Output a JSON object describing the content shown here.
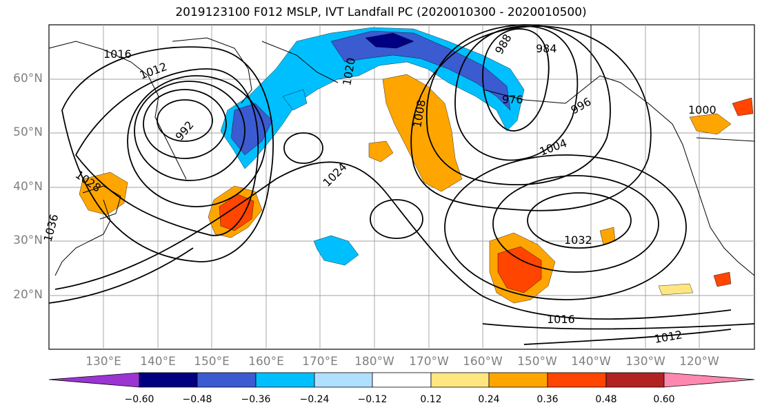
{
  "title": "2019123100 F012 MSLP, IVT Landfall PC (2020010300 - 2020010500)",
  "latitude_labels": [
    "60°N",
    "50°N",
    "40°N",
    "30°N",
    "20°N"
  ],
  "longitude_labels": [
    "130°E",
    "140°E",
    "150°E",
    "160°E",
    "170°E",
    "180°W",
    "170°W",
    "160°W",
    "150°W",
    "140°W",
    "130°W",
    "120°W"
  ],
  "isobar_labels": [
    "1016",
    "1012",
    "1028",
    "1020",
    "1004",
    "988",
    "984",
    "1000",
    "996",
    "992",
    "976",
    "1008",
    "1024",
    "1036",
    "1032",
    "1016",
    "1012"
  ],
  "colorbar": {
    "ticks": [
      "−0.60",
      "−0.48",
      "−0.36",
      "−0.24",
      "−0.12",
      "0.12",
      "0.24",
      "0.36",
      "0.48",
      "0.60"
    ],
    "colors": [
      "#9a35d2",
      "#000080",
      "#3b5bd0",
      "#00bfff",
      "#b0e0ff",
      "#ffffff",
      "#ffe680",
      "#ffa500",
      "#ff4500",
      "#b22222",
      "#ff88b0"
    ]
  }
}
